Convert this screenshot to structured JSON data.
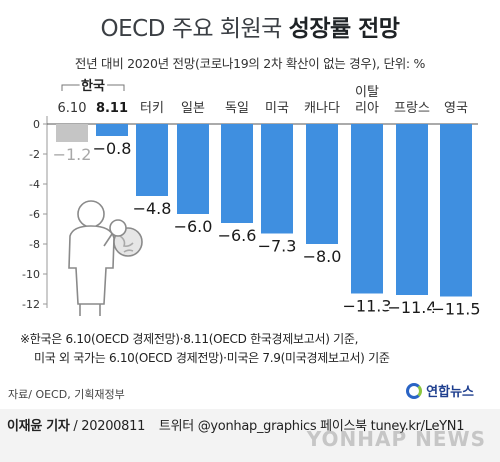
{
  "header": {
    "title_prefix": "OECD 주요 회원국",
    "title_bold": "성장률 전망",
    "subtitle": "전년 대비 2020년 전망(코로나19의 2차 확산이 없는 경우), 단위: %"
  },
  "chart_data": {
    "type": "bar",
    "title": "OECD 주요 회원국 성장률 전망",
    "subtitle": "전년 대비 2020년 전망(코로나19의 2차 확산이 없는 경우), 단위: %",
    "group_label": "한국",
    "categories": [
      "6.10",
      "8.11",
      "터키",
      "일본",
      "독일",
      "미국",
      "캐나다",
      "이탈리아",
      "프랑스",
      "영국"
    ],
    "category_lines": [
      [
        "6.10"
      ],
      [
        "8.11"
      ],
      [
        "터키"
      ],
      [
        "일본"
      ],
      [
        "독일"
      ],
      [
        "미국"
      ],
      [
        "캐나다"
      ],
      [
        "이탈",
        "리아"
      ],
      [
        "프랑스"
      ],
      [
        "영국"
      ]
    ],
    "values": [
      -1.2,
      -0.8,
      -4.8,
      -6.0,
      -6.6,
      -7.3,
      -8.0,
      -11.3,
      -11.4,
      -11.5
    ],
    "value_labels": [
      "−1.2",
      "−0.8",
      "−4.8",
      "−6.0",
      "−6.6",
      "−7.3",
      "−8.0",
      "−11.3",
      "−11.4",
      "−11.5"
    ],
    "y_ticks": [
      0,
      -2,
      -4,
      -6,
      -8,
      -10,
      -12
    ],
    "ylim": [
      -12.8,
      0.6
    ],
    "grid": false,
    "colors": {
      "bar": "#3f8fe0",
      "bar_faded": "#c5c5c5",
      "label_faded": "#a8a8a8",
      "label": "#1a1a1a",
      "highlight_category": "#1a1a1a"
    }
  },
  "notes": {
    "line1": "※한국은 6.10(OECD 경제전망)·8.11(OECD 한국경제보고서) 기준,",
    "line2": "미국 외 국가는 6.10(OECD 경제전망)·미국은 7.9(미국경제보고서) 기준"
  },
  "source": "자료/ OECD, 기획재정부",
  "logo_text": "연합뉴스",
  "footer": {
    "author": "이재윤 기자",
    "date": "/ 20200811",
    "links": "트위터 @yonhap_graphics  페이스북 tuney.kr/LeYN1",
    "watermark": "YONHAP NEWS"
  }
}
